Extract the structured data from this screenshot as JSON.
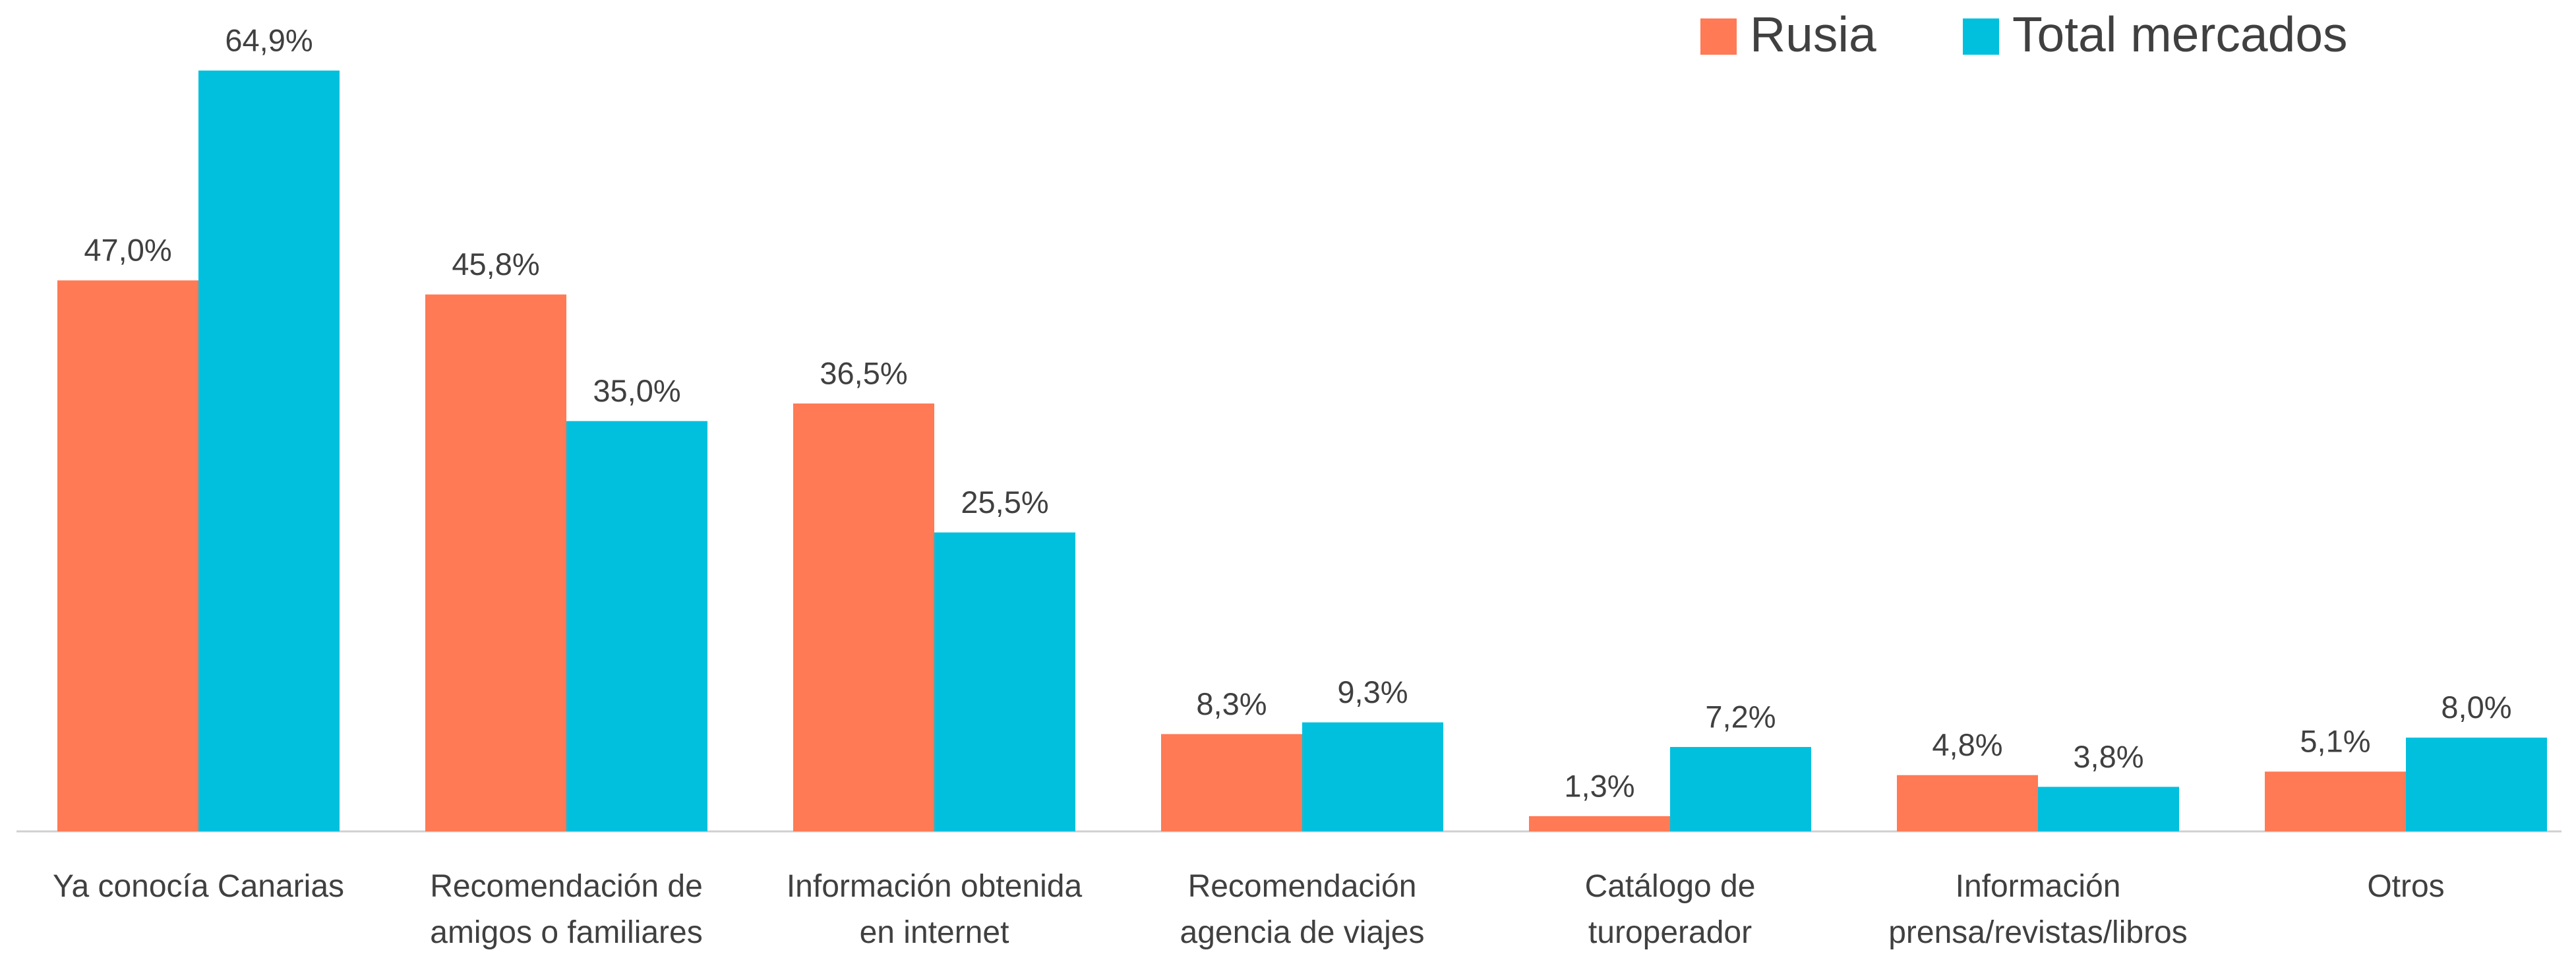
{
  "chart_data": {
    "type": "bar",
    "categories": [
      "Ya conocía Canarias",
      "Recomendación de\namigos o familiares",
      "Información obtenida\nen internet",
      "Recomendación\nagencia de viajes",
      "Catálogo de\nturoperador",
      "Información\nprensa/revistas/libros",
      "Otros"
    ],
    "series": [
      {
        "name": "Rusia",
        "color": "#ff7a55",
        "values": [
          47.0,
          45.8,
          36.5,
          8.3,
          1.3,
          4.8,
          5.1
        ],
        "value_labels": [
          "47,0%",
          "45,8%",
          "36,5%",
          "8,3%",
          "1,3%",
          "4,8%",
          "5,1%"
        ]
      },
      {
        "name": "Total mercados",
        "color": "#00c0de",
        "values": [
          64.9,
          35.0,
          25.5,
          9.3,
          7.2,
          3.8,
          8.0
        ],
        "value_labels": [
          "64,9%",
          "35,0%",
          "25,5%",
          "9,3%",
          "7,2%",
          "3,8%",
          "8,0%"
        ]
      }
    ],
    "legend": "top-right"
  }
}
